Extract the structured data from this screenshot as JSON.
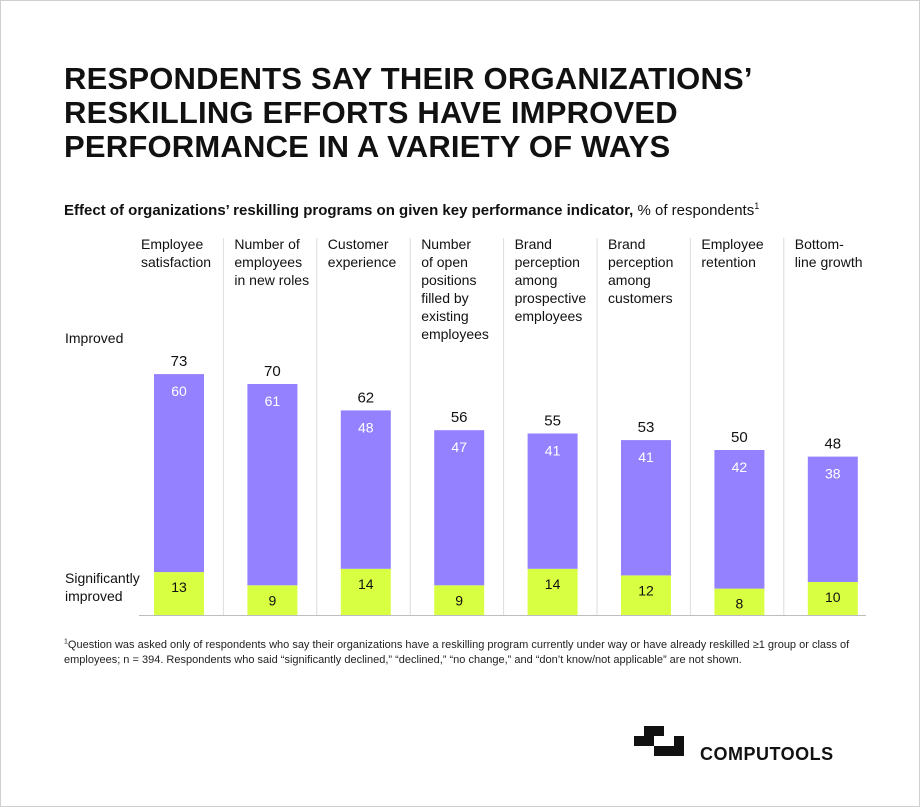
{
  "title": "RESPONDENTS SAY THEIR ORGANIZATIONS’ RESKILLING EFFORTS HAVE IMPROVED PERFORMANCE IN A VARIETY OF WAYS",
  "subtitle": {
    "bold": "Effect of organizations’ reskilling programs on given key performance indicator,",
    "normal": " % of respondents",
    "sup": "1"
  },
  "footnote": {
    "sup": "1",
    "text": "Question was asked only of respondents who say their organizations have a reskilling program currently under way or have already reskilled ≥1 group or class of employees; n = 394. Respondents who said “significantly declined,” “declined,” “no change,” and “don’t know/not applicable” are not shown."
  },
  "brand": {
    "name": "COMPUTOOLS"
  },
  "colors": {
    "improved": "#9381ff",
    "significantly_improved": "#d9ff43",
    "divider": "#dcdcdc",
    "axis": "#bdbdbd"
  },
  "chart_data": {
    "type": "bar",
    "stacked": true,
    "title": "Effect of organizations’ reskilling programs on given key performance indicator, % of respondents",
    "categories": [
      [
        "Employee",
        "satisfaction"
      ],
      [
        "Number of",
        "employees",
        "in new roles"
      ],
      [
        "Customer",
        "experience"
      ],
      [
        "Number",
        "of open",
        "positions",
        "filled by",
        "existing",
        "employees"
      ],
      [
        "Brand",
        "perception",
        "among",
        "prospective",
        "employees"
      ],
      [
        "Brand",
        "perception",
        "among",
        "customers"
      ],
      [
        "Employee",
        "retention"
      ],
      [
        "Bottom-",
        "line growth"
      ]
    ],
    "series": [
      {
        "name": "Significantly improved",
        "label_lines": [
          "Significantly",
          "improved"
        ],
        "values": [
          13,
          9,
          14,
          9,
          14,
          12,
          8,
          10
        ]
      },
      {
        "name": "Improved",
        "label_lines": [
          "Improved"
        ],
        "values": [
          60,
          61,
          48,
          47,
          41,
          41,
          42,
          38
        ]
      }
    ],
    "totals": [
      73,
      70,
      62,
      56,
      55,
      53,
      50,
      48
    ],
    "ylim": [
      0,
      100
    ]
  }
}
